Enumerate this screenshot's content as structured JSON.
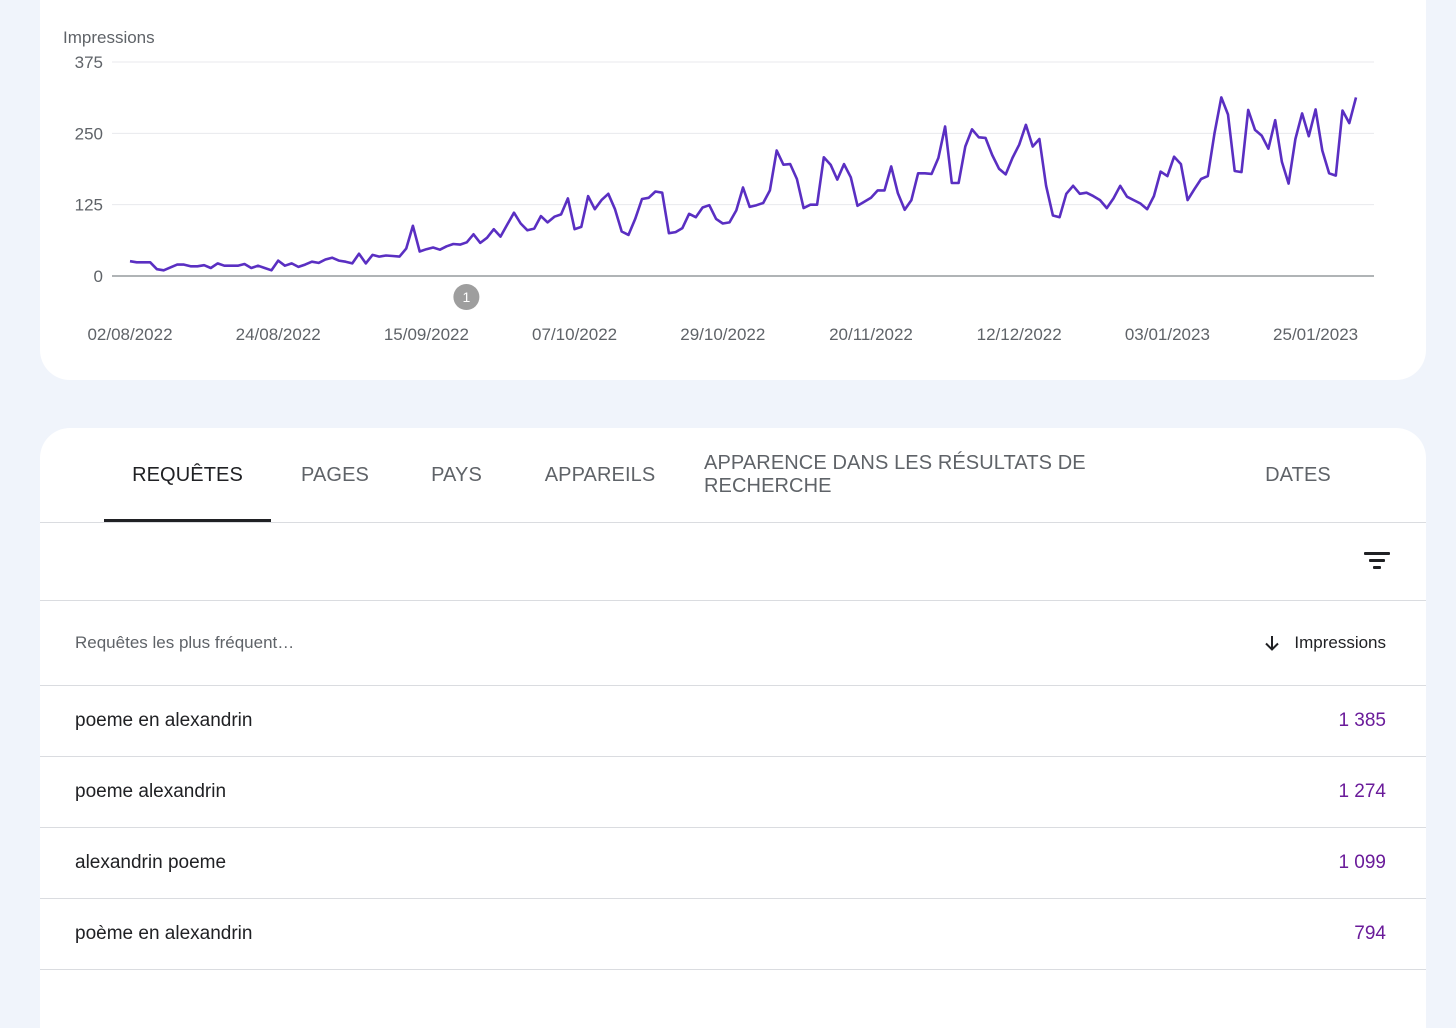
{
  "chart_data": {
    "type": "line",
    "title": "",
    "ylabel": "Impressions",
    "ylim": [
      0,
      375
    ],
    "yticks": [
      "375",
      "250",
      "125",
      "0"
    ],
    "x_tick_labels": [
      "02/08/2022",
      "24/08/2022",
      "15/09/2022",
      "07/10/2022",
      "29/10/2022",
      "20/11/2022",
      "12/12/2022",
      "03/01/2023",
      "25/01/2023"
    ],
    "x_start": "02/08/2022",
    "x_end": "31/01/2023",
    "annotation": {
      "label": "1",
      "date": "15/09/2022"
    },
    "colors": {
      "line": "#5a2fc2"
    },
    "series": [
      {
        "values": [
          26,
          24,
          24,
          24,
          12,
          10,
          15,
          20,
          20,
          17,
          17,
          19,
          14,
          22,
          18,
          18,
          18,
          21,
          14,
          18,
          14,
          10,
          27,
          18,
          22,
          16,
          20,
          25,
          23,
          29,
          32,
          27,
          25,
          22,
          39,
          22,
          37,
          34,
          36,
          35,
          34,
          48,
          88,
          43,
          47,
          50,
          46,
          52,
          56,
          55,
          59,
          73,
          58,
          67,
          82,
          69,
          90,
          111,
          92,
          80,
          83,
          105,
          94,
          104,
          108,
          136,
          82,
          86,
          140,
          117,
          133,
          144,
          117,
          78,
          72,
          100,
          135,
          137,
          148,
          146,
          75,
          77,
          84,
          109,
          103,
          120,
          124,
          100,
          92,
          94,
          115,
          155,
          121,
          124,
          128,
          150,
          220,
          195,
          196,
          170,
          119,
          125,
          125,
          208,
          195,
          169,
          196,
          173,
          123,
          130,
          137,
          150,
          150,
          192,
          145,
          116,
          133,
          180,
          180,
          179,
          207,
          262,
          163,
          163,
          227,
          257,
          243,
          242,
          212,
          188,
          178,
          207,
          230,
          265,
          227,
          240,
          158,
          106,
          103,
          144,
          158,
          144,
          146,
          140,
          133,
          119,
          136,
          158,
          139,
          133,
          127,
          117,
          140,
          183,
          175,
          209,
          196,
          133,
          152,
          170,
          175,
          250,
          313,
          283,
          184,
          182,
          291,
          256,
          246,
          223,
          273,
          200,
          162,
          240,
          285,
          245,
          292,
          220,
          180,
          176,
          290,
          268,
          313
        ]
      }
    ]
  },
  "tabs": [
    {
      "label": "REQUÊTES",
      "active": true
    },
    {
      "label": "PAGES"
    },
    {
      "label": "PAYS"
    },
    {
      "label": "APPAREILS"
    },
    {
      "label": "APPARENCE DANS LES RÉSULTATS DE RECHERCHE"
    },
    {
      "label": "DATES"
    }
  ],
  "filter": {
    "icon": "filter-icon"
  },
  "table": {
    "col_query": "Requêtes les plus fréquent…",
    "col_impressions": "Impressions",
    "sort_icon": "arrow-down-icon",
    "rows": [
      {
        "query": "poeme en alexandrin",
        "impressions": "1 385"
      },
      {
        "query": "poeme alexandrin",
        "impressions": "1 274"
      },
      {
        "query": "alexandrin poeme",
        "impressions": "1 099"
      },
      {
        "query": "poème en alexandrin",
        "impressions": "794"
      }
    ]
  }
}
